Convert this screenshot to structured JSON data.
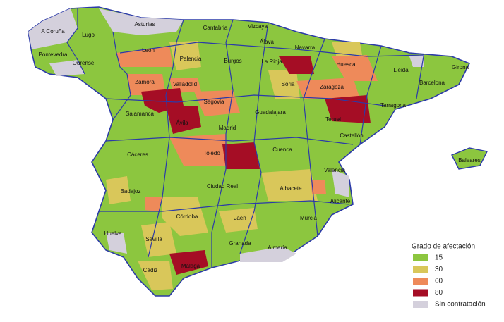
{
  "provinces": [
    "A Coruña",
    "Lugo",
    "Asturias",
    "Cantabria",
    "Vizcaya",
    "Pontevedra",
    "Ourense",
    "León",
    "Palencia",
    "Burgos",
    "Álava",
    "Navarra",
    "La Rioja",
    "Huesca",
    "Lleida",
    "Girona",
    "Barcelona",
    "Zamora",
    "Valladolid",
    "Soria",
    "Zaragoza",
    "Tarragona",
    "Salamanca",
    "Segovia",
    "Ávila",
    "Madrid",
    "Guadalajara",
    "Teruel",
    "Castellón",
    "Cáceres",
    "Toledo",
    "Cuenca",
    "Valencia",
    "Baleares",
    "Badajoz",
    "Ciudad Real",
    "Albacete",
    "Alicante",
    "Córdoba",
    "Jaén",
    "Murcia",
    "Huelva",
    "Sevilla",
    "Granada",
    "Almería",
    "Cádiz",
    "Málaga"
  ],
  "legend": {
    "title": "Grado de afectación",
    "items": [
      {
        "label": "15",
        "color": "#8cc63f"
      },
      {
        "label": "30",
        "color": "#d9c75a"
      },
      {
        "label": "60",
        "color": "#ee8a5a"
      },
      {
        "label": "80",
        "color": "#a50d25"
      },
      {
        "label": "Sin contratación",
        "color": "#d4d0dc"
      }
    ]
  }
}
